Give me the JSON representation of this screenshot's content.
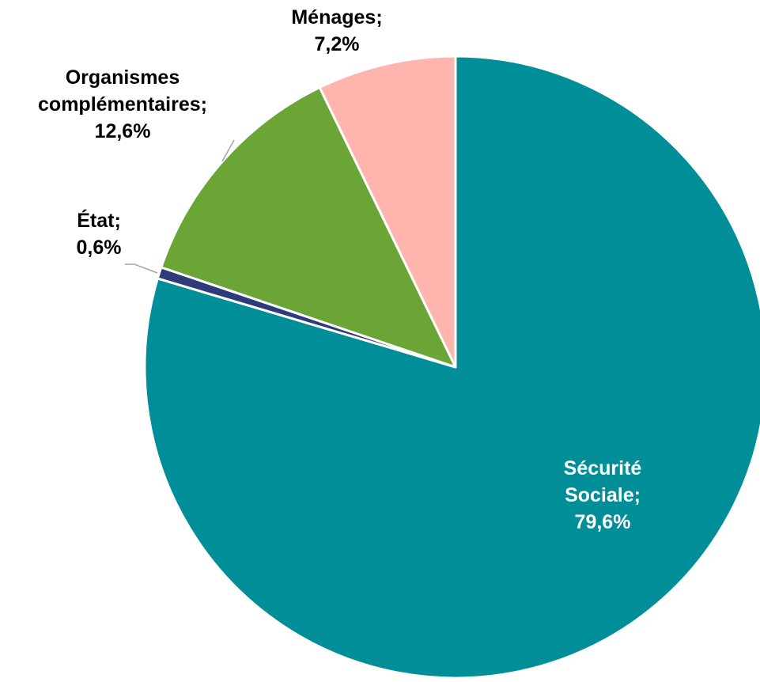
{
  "chart_data": {
    "type": "pie",
    "title": "",
    "start_angle_deg": 0,
    "direction": "clockwise",
    "slices": [
      {
        "name": "Sécurité Sociale",
        "label_lines": [
          "Sécurité",
          "Sociale;",
          "79,6%"
        ],
        "value": 79.6,
        "color": "#008F98",
        "label_color": "#ffffff",
        "label_position": "inside"
      },
      {
        "name": "État",
        "label_lines": [
          "État;",
          "0,6%"
        ],
        "value": 0.6,
        "color": "#2E3B7A",
        "label_color": "#000000",
        "label_position": "outside"
      },
      {
        "name": "Organismes complémentaires",
        "label_lines": [
          "Organismes",
          "complémentaires;",
          "12,6%"
        ],
        "value": 12.6,
        "color": "#6AA535",
        "label_color": "#000000",
        "label_position": "outside"
      },
      {
        "name": "Ménages",
        "label_lines": [
          "Ménages;",
          "7,2%"
        ],
        "value": 7.2,
        "color": "#FFB5AD",
        "label_color": "#000000",
        "label_position": "outside"
      }
    ],
    "legend": "none"
  }
}
